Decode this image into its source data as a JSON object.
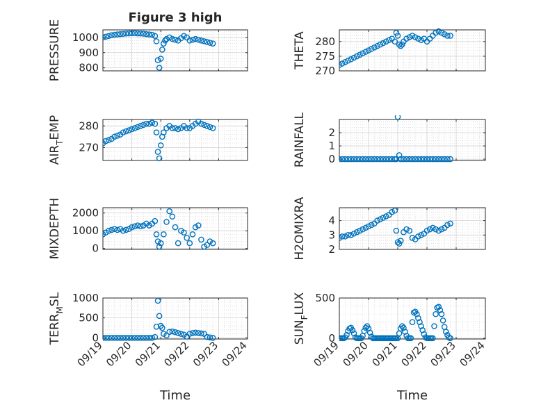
{
  "figure": {
    "title": "Figure 3 high",
    "xlabel": "Time",
    "xticks": [
      "09/19",
      "09/20",
      "09/21",
      "09/22",
      "09/23",
      "09/24"
    ],
    "marker_color": "#0072BD"
  },
  "chart_data": [
    {
      "type": "scatter",
      "col": 0,
      "row": 0,
      "ylabel": "PRESSURE",
      "ylabel_sub": "",
      "ylim": [
        780,
        1050
      ],
      "yticks": [
        800,
        900,
        1000
      ],
      "x": [
        0,
        0.1,
        0.2,
        0.3,
        0.4,
        0.5,
        0.6,
        0.7,
        0.8,
        0.9,
        1.0,
        1.1,
        1.2,
        1.3,
        1.4,
        1.5,
        1.6,
        1.7,
        1.8,
        1.85,
        1.9,
        1.95,
        2.0,
        2.05,
        2.1,
        2.15,
        2.2,
        2.3,
        2.4,
        2.5,
        2.6,
        2.7,
        2.8,
        2.9,
        3.0,
        3.1,
        3.2,
        3.3,
        3.4,
        3.5,
        3.6,
        3.7,
        3.8
      ],
      "y": [
        1000,
        1005,
        1010,
        1015,
        1018,
        1020,
        1022,
        1024,
        1026,
        1027,
        1028,
        1028,
        1027,
        1026,
        1025,
        1022,
        1020,
        1018,
        1010,
        975,
        850,
        800,
        860,
        920,
        960,
        980,
        990,
        1000,
        990,
        985,
        980,
        995,
        1010,
        1000,
        980,
        985,
        990,
        985,
        980,
        975,
        970,
        965,
        960
      ]
    },
    {
      "type": "scatter",
      "col": 1,
      "row": 0,
      "ylabel": "THETA",
      "ylabel_sub": "",
      "ylim": [
        270,
        284
      ],
      "yticks": [
        270,
        275,
        280
      ],
      "x": [
        0,
        0.1,
        0.2,
        0.3,
        0.4,
        0.5,
        0.6,
        0.7,
        0.8,
        0.9,
        1.0,
        1.1,
        1.2,
        1.3,
        1.4,
        1.5,
        1.6,
        1.7,
        1.8,
        1.9,
        1.95,
        2.0,
        2.05,
        2.1,
        2.15,
        2.2,
        2.3,
        2.4,
        2.5,
        2.6,
        2.7,
        2.8,
        2.9,
        3.0,
        3.1,
        3.2,
        3.3,
        3.4,
        3.5,
        3.6,
        3.7,
        3.8
      ],
      "y": [
        272,
        272.5,
        273,
        273.5,
        274,
        274.5,
        275,
        275.5,
        276,
        276.5,
        277,
        277.5,
        278,
        278.5,
        279,
        279.5,
        280,
        280.5,
        281,
        280,
        283,
        282,
        279,
        278.5,
        279,
        280,
        281,
        281.5,
        282,
        281.5,
        281,
        280.5,
        281,
        280,
        281,
        282,
        283,
        283.5,
        283,
        282.5,
        282,
        282
      ]
    },
    {
      "type": "scatter",
      "col": 0,
      "row": 1,
      "ylabel": "AIR",
      "ylabel_sub": "T",
      "ylabel_tail": "EMP",
      "ylim": [
        264,
        283
      ],
      "yticks": [
        270,
        280
      ],
      "x": [
        0,
        0.1,
        0.2,
        0.3,
        0.4,
        0.5,
        0.6,
        0.7,
        0.8,
        0.9,
        1.0,
        1.1,
        1.2,
        1.3,
        1.4,
        1.5,
        1.6,
        1.7,
        1.8,
        1.85,
        1.9,
        1.95,
        2.0,
        2.05,
        2.1,
        2.2,
        2.3,
        2.4,
        2.5,
        2.6,
        2.7,
        2.8,
        2.9,
        3.0,
        3.1,
        3.2,
        3.3,
        3.4,
        3.5,
        3.6,
        3.7,
        3.8
      ],
      "y": [
        272,
        273,
        273.5,
        274,
        275,
        275.5,
        276,
        277,
        277.5,
        278,
        278.5,
        279,
        279.5,
        280,
        280.5,
        281,
        281,
        281.5,
        281,
        277,
        268,
        265,
        271,
        275,
        277,
        279,
        280,
        279,
        279,
        278.5,
        279,
        280,
        279,
        279,
        280,
        281,
        282,
        281,
        280.5,
        280,
        279.5,
        279
      ]
    },
    {
      "type": "scatter",
      "col": 1,
      "row": 1,
      "ylabel": "RAINFALL",
      "ylabel_sub": "",
      "ylim": [
        -0.1,
        3.0
      ],
      "yticks": [
        0,
        1,
        2
      ],
      "x": [
        0,
        0.1,
        0.2,
        0.3,
        0.4,
        0.5,
        0.6,
        0.7,
        0.8,
        0.9,
        1.0,
        1.1,
        1.2,
        1.3,
        1.4,
        1.5,
        1.6,
        1.7,
        1.8,
        1.9,
        1.95,
        2.0,
        2.05,
        2.1,
        2.2,
        2.3,
        2.4,
        2.5,
        2.6,
        2.7,
        2.8,
        2.9,
        3.0,
        3.1,
        3.2,
        3.3,
        3.4,
        3.5,
        3.6,
        3.7,
        3.8
      ],
      "y": [
        0,
        0,
        0,
        0,
        0,
        0,
        0,
        0,
        0,
        0,
        0,
        0,
        0,
        0,
        0,
        0,
        0,
        0,
        0,
        0,
        0,
        3.2,
        0.3,
        0,
        0,
        0,
        0,
        0,
        0,
        0,
        0,
        0,
        0,
        0,
        0,
        0,
        0,
        0,
        0,
        0,
        0
      ]
    },
    {
      "type": "scatter",
      "col": 0,
      "row": 2,
      "ylabel": "MIXDEPTH",
      "ylabel_sub": "",
      "ylim": [
        -50,
        2300
      ],
      "yticks": [
        0,
        1000,
        2000
      ],
      "x": [
        0,
        0.1,
        0.2,
        0.3,
        0.4,
        0.5,
        0.6,
        0.7,
        0.8,
        0.9,
        1.0,
        1.1,
        1.2,
        1.3,
        1.4,
        1.5,
        1.6,
        1.7,
        1.8,
        1.85,
        1.9,
        1.95,
        2.0,
        2.1,
        2.2,
        2.3,
        2.4,
        2.5,
        2.6,
        2.7,
        2.8,
        2.9,
        3.0,
        3.1,
        3.2,
        3.3,
        3.4,
        3.5,
        3.6,
        3.7,
        3.8
      ],
      "y": [
        800,
        900,
        1000,
        1050,
        1100,
        1050,
        1100,
        1000,
        1050,
        1100,
        1200,
        1250,
        1300,
        1250,
        1300,
        1400,
        1300,
        1400,
        1550,
        800,
        400,
        100,
        300,
        800,
        1500,
        2100,
        1800,
        1200,
        300,
        1000,
        900,
        600,
        300,
        800,
        1200,
        1300,
        500,
        100,
        200,
        400,
        300
      ]
    },
    {
      "type": "scatter",
      "col": 1,
      "row": 2,
      "ylabel": "H2OMIXRA",
      "ylabel_sub": "",
      "ylim": [
        2.0,
        4.9
      ],
      "yticks": [
        2,
        3,
        4
      ],
      "x": [
        0,
        0.1,
        0.2,
        0.3,
        0.4,
        0.5,
        0.6,
        0.7,
        0.8,
        0.9,
        1.0,
        1.1,
        1.2,
        1.3,
        1.4,
        1.5,
        1.6,
        1.7,
        1.8,
        1.9,
        1.95,
        2.0,
        2.05,
        2.1,
        2.2,
        2.3,
        2.4,
        2.5,
        2.6,
        2.7,
        2.8,
        2.9,
        3.0,
        3.1,
        3.2,
        3.3,
        3.4,
        3.5,
        3.6,
        3.7,
        3.8
      ],
      "y": [
        2.8,
        2.9,
        2.9,
        3.0,
        3.0,
        3.1,
        3.2,
        3.3,
        3.4,
        3.5,
        3.6,
        3.7,
        3.8,
        4.0,
        4.1,
        4.2,
        4.3,
        4.4,
        4.6,
        4.7,
        3.3,
        2.5,
        2.4,
        2.6,
        3.2,
        3.4,
        3.3,
        2.8,
        2.7,
        2.9,
        3.0,
        3.1,
        3.3,
        3.4,
        3.5,
        3.4,
        3.3,
        3.4,
        3.5,
        3.7,
        3.8
      ]
    },
    {
      "type": "scatter",
      "col": 0,
      "row": 3,
      "ylabel": "TERR",
      "ylabel_sub": "M",
      "ylabel_tail": "SL",
      "ylim": [
        -30,
        1000
      ],
      "yticks": [
        0,
        500,
        1000
      ],
      "x": [
        0,
        0.1,
        0.2,
        0.3,
        0.4,
        0.5,
        0.6,
        0.7,
        0.8,
        0.9,
        1.0,
        1.1,
        1.2,
        1.3,
        1.4,
        1.5,
        1.6,
        1.7,
        1.8,
        1.85,
        1.9,
        1.95,
        2.0,
        2.05,
        2.1,
        2.2,
        2.3,
        2.4,
        2.5,
        2.6,
        2.7,
        2.8,
        2.9,
        3.0,
        3.1,
        3.2,
        3.3,
        3.4,
        3.5,
        3.6,
        3.7,
        3.8
      ],
      "y": [
        0,
        0,
        0,
        0,
        0,
        0,
        0,
        0,
        0,
        0,
        0,
        0,
        0,
        0,
        0,
        0,
        0,
        0,
        20,
        280,
        930,
        550,
        300,
        250,
        100,
        60,
        150,
        160,
        140,
        120,
        100,
        80,
        30,
        100,
        120,
        130,
        120,
        110,
        100,
        20,
        10,
        0
      ]
    },
    {
      "type": "scatter",
      "col": 1,
      "row": 3,
      "ylabel": "SUN",
      "ylabel_sub": "F",
      "ylabel_tail": "LUX",
      "ylim": [
        -10,
        500
      ],
      "yticks": [
        0,
        500
      ],
      "x": [
        0,
        0.05,
        0.1,
        0.15,
        0.2,
        0.25,
        0.3,
        0.35,
        0.4,
        0.45,
        0.5,
        0.55,
        0.6,
        0.65,
        0.7,
        0.75,
        0.8,
        0.85,
        0.9,
        0.95,
        1.0,
        1.05,
        1.1,
        1.15,
        1.2,
        1.25,
        1.3,
        1.35,
        1.4,
        1.45,
        1.5,
        1.55,
        1.6,
        1.65,
        1.7,
        1.75,
        1.8,
        1.85,
        1.9,
        1.95,
        2.0,
        2.05,
        2.1,
        2.15,
        2.2,
        2.25,
        2.3,
        2.35,
        2.4,
        2.45,
        2.5,
        2.55,
        2.6,
        2.65,
        2.7,
        2.75,
        2.8,
        2.85,
        2.9,
        2.95,
        3.0,
        3.05,
        3.1,
        3.15,
        3.2,
        3.25,
        3.3,
        3.35,
        3.4,
        3.45,
        3.5,
        3.55,
        3.6,
        3.65,
        3.7,
        3.75,
        3.8
      ],
      "y": [
        0,
        0,
        0,
        0,
        10,
        40,
        90,
        120,
        130,
        100,
        60,
        10,
        0,
        0,
        0,
        0,
        30,
        90,
        130,
        150,
        120,
        70,
        20,
        0,
        0,
        0,
        0,
        0,
        0,
        0,
        0,
        0,
        0,
        0,
        0,
        0,
        0,
        0,
        0,
        0,
        0,
        60,
        120,
        150,
        130,
        80,
        30,
        0,
        0,
        0,
        200,
        320,
        330,
        300,
        250,
        200,
        150,
        100,
        50,
        10,
        0,
        0,
        0,
        0,
        0,
        150,
        300,
        380,
        390,
        350,
        300,
        220,
        140,
        80,
        40,
        10,
        0
      ]
    }
  ]
}
